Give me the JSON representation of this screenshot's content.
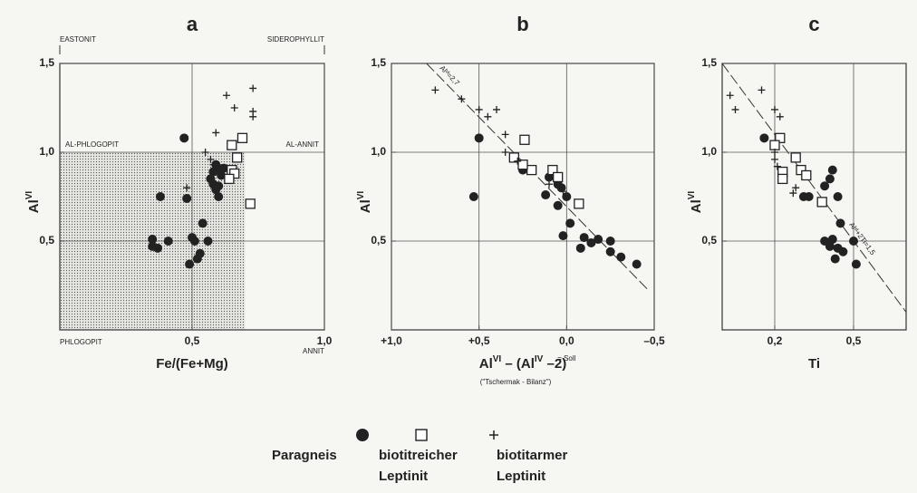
{
  "chart_data": [
    {
      "type": "scatter",
      "title": "a",
      "xlabel": [
        "Fe/(Fe+Mg)"
      ],
      "ylabel": [
        "Al",
        "VI"
      ],
      "xlim": [
        0,
        1.0
      ],
      "ylim": [
        0,
        1.5
      ],
      "xticks": [
        {
          "value": 0.5,
          "label": "0,5"
        },
        {
          "value": 1.0,
          "label": "1,0"
        }
      ],
      "yticks": [
        {
          "value": 0.5,
          "label": "0,5"
        },
        {
          "value": 1.0,
          "label": "1,0"
        },
        {
          "value": 1.5,
          "label": "1,5"
        }
      ],
      "grid": true,
      "shading": {
        "x": [
          0,
          0.7
        ],
        "y": [
          0,
          1.0
        ]
      },
      "annotations": [
        "EASTONIT",
        "SIDEROPHYLLIT",
        "AL-PHLOGOPIT",
        "AL-ANNIT",
        "PHLOGOPIT",
        "ANNIT"
      ],
      "series": [
        {
          "name": "Paragneis",
          "marker": "circle",
          "color": "#222",
          "x": [
            0.47,
            0.38,
            0.48,
            0.35,
            0.35,
            0.37,
            0.41,
            0.49,
            0.5,
            0.51,
            0.52,
            0.53,
            0.54,
            0.56,
            0.57,
            0.58,
            0.59,
            0.6,
            0.59,
            0.6,
            0.62,
            0.6,
            0.58,
            0.61
          ],
          "values": [
            1.08,
            0.75,
            0.74,
            0.51,
            0.47,
            0.46,
            0.5,
            0.37,
            0.52,
            0.5,
            0.4,
            0.43,
            0.6,
            0.5,
            0.85,
            0.82,
            0.79,
            0.75,
            0.93,
            0.91,
            0.91,
            0.81,
            0.89,
            0.87
          ]
        },
        {
          "name": "biotitreicher Leptinit",
          "marker": "square",
          "color": "#222",
          "x": [
            0.65,
            0.69,
            0.67,
            0.65,
            0.66,
            0.64,
            0.72
          ],
          "values": [
            1.04,
            1.08,
            0.97,
            0.9,
            0.88,
            0.85,
            0.71
          ]
        },
        {
          "name": "biotitarmer Leptinit",
          "marker": "plus",
          "color": "#222",
          "x": [
            0.59,
            0.63,
            0.66,
            0.73,
            0.73,
            0.73,
            0.48,
            0.55,
            0.57,
            0.58
          ],
          "values": [
            1.11,
            1.32,
            1.25,
            1.36,
            1.23,
            1.2,
            0.8,
            1.0,
            0.96,
            0.93
          ]
        }
      ]
    },
    {
      "type": "scatter",
      "title": "b",
      "xlabel": [
        "Al",
        "VI",
        " – (Al",
        "IV",
        " –2)"
      ],
      "xlabel2": "(\"Tschermak - Bilanz\")",
      "ylabel": [
        "Al",
        "VI"
      ],
      "xlim": [
        1.0,
        -0.5
      ],
      "ylim": [
        0,
        1.5
      ],
      "xticks": [
        {
          "value": 1.0,
          "label": "+1,0"
        },
        {
          "value": 0.5,
          "label": "+0,5"
        },
        {
          "value": 0.0,
          "label": "0,0"
        },
        {
          "value": -0.5,
          "label": "–0,5"
        }
      ],
      "yticks": [
        {
          "value": 0.5,
          "label": "0,5"
        },
        {
          "value": 1.0,
          "label": "1,0"
        },
        {
          "value": 1.5,
          "label": "1,5"
        }
      ],
      "grid": true,
      "annotations": [
        "= Soll"
      ],
      "reference_line": {
        "x": [
          0.8,
          -0.47
        ],
        "y": [
          1.5,
          0.22
        ],
        "label": "Alᵛᴵ=2,7"
      },
      "series": [
        {
          "name": "Paragneis",
          "marker": "circle",
          "color": "#222",
          "x": [
            0.53,
            0.5,
            0.25,
            0.2,
            0.1,
            0.12,
            0.05,
            0.03,
            0.0,
            0.05,
            -0.02,
            0.02,
            -0.08,
            -0.1,
            -0.14,
            -0.18,
            -0.25,
            -0.25,
            -0.31,
            -0.4
          ],
          "values": [
            0.75,
            1.08,
            0.9,
            0.9,
            0.86,
            0.76,
            0.82,
            0.8,
            0.75,
            0.7,
            0.6,
            0.53,
            0.46,
            0.52,
            0.49,
            0.51,
            0.5,
            0.44,
            0.41,
            0.37
          ]
        },
        {
          "name": "biotitreicher Leptinit",
          "marker": "square",
          "color": "#222",
          "x": [
            0.24,
            0.3,
            0.2,
            0.08,
            0.05,
            -0.07,
            0.25
          ],
          "values": [
            1.07,
            0.97,
            0.9,
            0.9,
            0.86,
            0.71,
            0.93
          ]
        },
        {
          "name": "biotitarmer Leptinit",
          "marker": "plus",
          "color": "#222",
          "x": [
            0.75,
            0.6,
            0.5,
            0.45,
            0.4,
            0.35,
            0.35,
            0.28,
            0.1,
            0.02
          ],
          "values": [
            1.35,
            1.3,
            1.24,
            1.2,
            1.24,
            1.1,
            1.0,
            0.95,
            0.82,
            0.78
          ]
        }
      ]
    },
    {
      "type": "scatter",
      "title": "c",
      "xlabel": [
        "Ti"
      ],
      "ylabel": [
        "Al",
        "VI"
      ],
      "xlim": [
        0,
        0.7
      ],
      "ylim": [
        0,
        1.5
      ],
      "xticks": [
        {
          "value": 0.2,
          "label": "0,2"
        },
        {
          "value": 0.5,
          "label": "0,5"
        }
      ],
      "yticks": [
        {
          "value": 0.5,
          "label": "0,5"
        },
        {
          "value": 1.0,
          "label": "1,0"
        },
        {
          "value": 1.5,
          "label": "1,5"
        }
      ],
      "grid": true,
      "reference_line": {
        "x": [
          0,
          0.7
        ],
        "y": [
          1.5,
          0.1
        ],
        "label": "Alᵛᴵ+2Ti=1,5"
      },
      "series": [
        {
          "name": "Paragneis",
          "marker": "circle",
          "color": "#222",
          "x": [
            0.16,
            0.42,
            0.41,
            0.39,
            0.33,
            0.31,
            0.44,
            0.45,
            0.39,
            0.42,
            0.44,
            0.43,
            0.46,
            0.5,
            0.51,
            0.41
          ],
          "values": [
            1.08,
            0.9,
            0.85,
            0.81,
            0.75,
            0.75,
            0.75,
            0.6,
            0.5,
            0.51,
            0.46,
            0.4,
            0.44,
            0.5,
            0.37,
            0.47
          ]
        },
        {
          "name": "biotitreicher Leptinit",
          "marker": "square",
          "color": "#222",
          "x": [
            0.22,
            0.2,
            0.28,
            0.23,
            0.23,
            0.3,
            0.32,
            0.38
          ],
          "values": [
            1.08,
            1.04,
            0.97,
            0.89,
            0.85,
            0.9,
            0.87,
            0.72
          ]
        },
        {
          "name": "biotitarmer Leptinit",
          "marker": "plus",
          "color": "#222",
          "x": [
            0.03,
            0.05,
            0.15,
            0.2,
            0.22,
            0.2,
            0.2,
            0.21,
            0.28,
            0.27
          ],
          "values": [
            1.32,
            1.24,
            1.35,
            1.24,
            1.2,
            1.0,
            0.96,
            0.92,
            0.8,
            0.77
          ]
        }
      ]
    }
  ]
}
